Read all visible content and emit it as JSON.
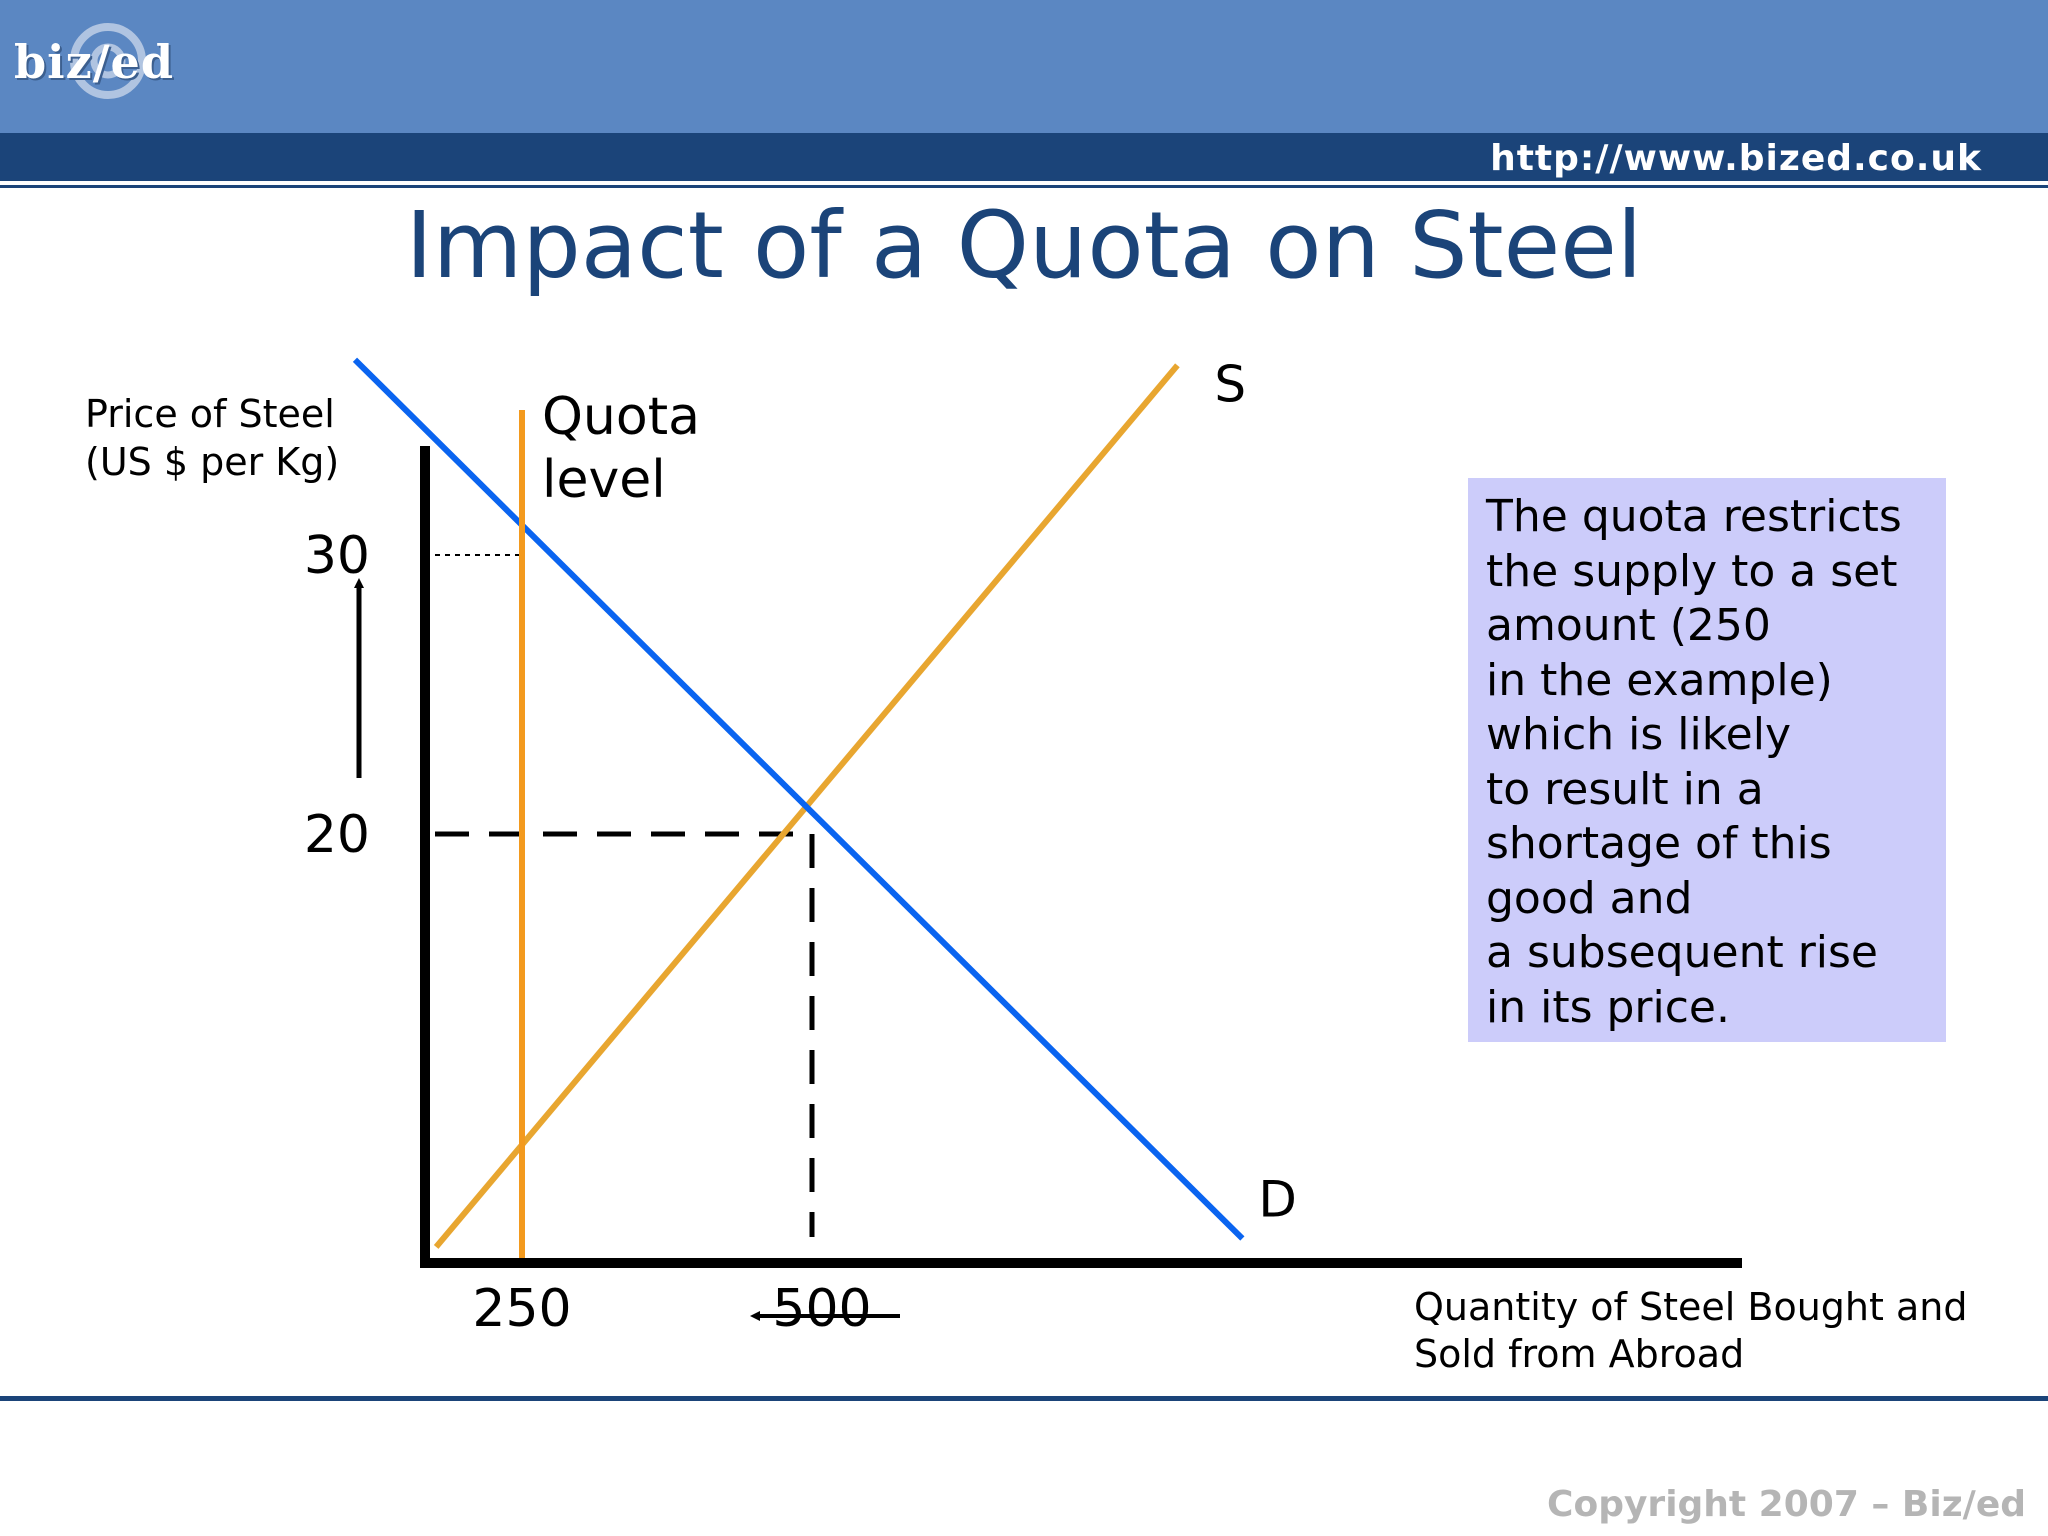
{
  "header": {
    "logo_text": "biz/ed",
    "url": "http://www.bized.co.uk"
  },
  "title": "Impact of a Quota on Steel",
  "colors": {
    "header_light": "#5b87c2",
    "header_dark": "#1b4479",
    "demand": "#0a64f0",
    "supply": "#e8a630",
    "quota": "#f39a1e",
    "note_bg": "#ccccfa"
  },
  "chart_data": {
    "type": "line",
    "title": "Impact of a Quota on Steel",
    "ylabel_lines": [
      "Price of Steel",
      "(US $ per Kg)"
    ],
    "xlabel_lines": [
      "Quantity of Steel Bought and",
      "Sold from Abroad"
    ],
    "y_ticks": [
      {
        "value": 20,
        "label": "20"
      },
      {
        "value": 30,
        "label": "30"
      }
    ],
    "x_ticks": [
      {
        "value": 250,
        "label": "250"
      },
      {
        "value": 500,
        "label": "500"
      }
    ],
    "series": [
      {
        "name": "D",
        "label": "D",
        "points": [
          [
            106,
            37
          ],
          [
            871,
            5.5
          ]
        ]
      },
      {
        "name": "S",
        "label": "S",
        "points": [
          [
            176,
            5.2
          ],
          [
            815,
            36.8
          ]
        ]
      },
      {
        "name": "Quota level",
        "label_lines": [
          "Quota",
          "level"
        ],
        "x": 250
      }
    ],
    "equilibrium": {
      "quantity": 500,
      "price": 20
    },
    "quota_price": 30,
    "annotations": [
      {
        "type": "arrow",
        "from": 20,
        "to": 30,
        "axis": "y"
      },
      {
        "type": "arrow",
        "from": 500,
        "to": 250,
        "axis": "x"
      }
    ]
  },
  "note_lines": [
    "The quota restricts",
    "the supply to a set",
    "amount (250",
    "in the example)",
    "which is likely",
    "to result in a",
    "shortage of this",
    "good and",
    "a subsequent rise",
    "in its price."
  ],
  "copyright": "Copyright 2007 – Biz/ed"
}
